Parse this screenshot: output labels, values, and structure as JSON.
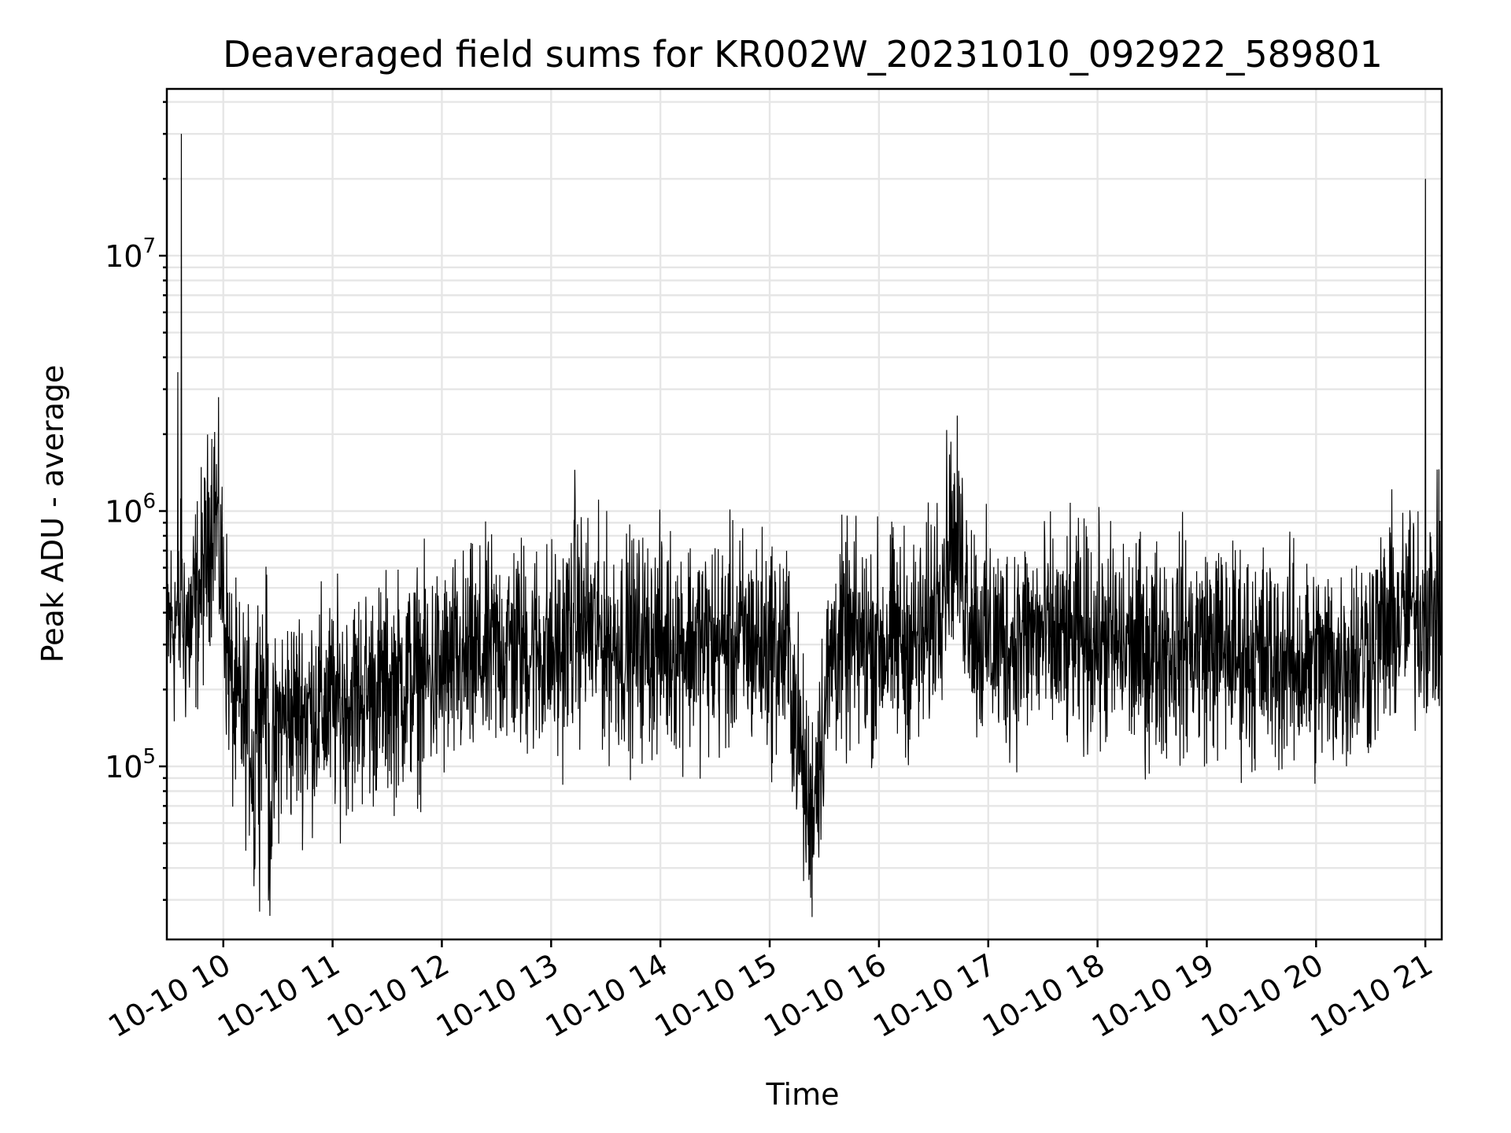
{
  "chart_data": {
    "type": "line",
    "title": "Deaveraged field sums for KR002W_20231010_092922_589801",
    "xlabel": "Time",
    "ylabel": "Peak ADU - average",
    "yscale": "log",
    "ylim": [
      21000,
      45000000
    ],
    "xlim": [
      "2023-10-10 09:29",
      "2023-10-10 21:09"
    ],
    "grid": "on (major and minor)",
    "x_tick_labels": [
      "10-10 10",
      "10-10 11",
      "10-10 12",
      "10-10 13",
      "10-10 14",
      "10-10 15",
      "10-10 16",
      "10-10 17",
      "10-10 18",
      "10-10 19",
      "10-10 20",
      "10-10 21"
    ],
    "x_tick_times": [
      "2023-10-10 10:00",
      "2023-10-10 11:00",
      "2023-10-10 12:00",
      "2023-10-10 13:00",
      "2023-10-10 14:00",
      "2023-10-10 15:00",
      "2023-10-10 16:00",
      "2023-10-10 17:00",
      "2023-10-10 18:00",
      "2023-10-10 19:00",
      "2023-10-10 20:00",
      "2023-10-10 21:00"
    ],
    "y_ticks": [
      {
        "value": 100000,
        "base": "10",
        "exp": "5"
      },
      {
        "value": 1000000,
        "base": "10",
        "exp": "6"
      },
      {
        "value": 10000000,
        "base": "10",
        "exp": "7"
      }
    ],
    "series": [
      {
        "color": "#000000",
        "x": [
          "2023-10-10 09:30",
          "2023-10-10 09:35",
          "2023-10-10 09:37",
          "2023-10-10 09:42",
          "2023-10-10 09:50",
          "2023-10-10 09:55",
          "2023-10-10 10:05",
          "2023-10-10 10:15",
          "2023-10-10 10:20",
          "2023-10-10 10:30",
          "2023-10-10 10:40",
          "2023-10-10 10:50",
          "2023-10-10 11:00",
          "2023-10-10 11:15",
          "2023-10-10 11:30",
          "2023-10-10 11:45",
          "2023-10-10 12:00",
          "2023-10-10 12:20",
          "2023-10-10 12:35",
          "2023-10-10 12:50",
          "2023-10-10 13:05",
          "2023-10-10 13:13",
          "2023-10-10 13:30",
          "2023-10-10 13:50",
          "2023-10-10 14:10",
          "2023-10-10 14:30",
          "2023-10-10 14:50",
          "2023-10-10 15:10",
          "2023-10-10 15:22",
          "2023-10-10 15:35",
          "2023-10-10 15:50",
          "2023-10-10 16:10",
          "2023-10-10 16:25",
          "2023-10-10 16:40",
          "2023-10-10 16:55",
          "2023-10-10 17:10",
          "2023-10-10 17:25",
          "2023-10-10 17:40",
          "2023-10-10 17:55",
          "2023-10-10 18:10",
          "2023-10-10 18:25",
          "2023-10-10 18:40",
          "2023-10-10 18:55",
          "2023-10-10 19:10",
          "2023-10-10 19:25",
          "2023-10-10 19:40",
          "2023-10-10 19:55",
          "2023-10-10 20:10",
          "2023-10-10 20:25",
          "2023-10-10 20:40",
          "2023-10-10 20:55",
          "2023-10-10 21:00",
          "2023-10-10 21:05",
          "2023-10-10 21:09"
        ],
        "values": [
          350000,
          3500000,
          30000000,
          350000,
          600000,
          1200000,
          180000,
          140000,
          27000,
          150000,
          160000,
          170000,
          170000,
          190000,
          200000,
          220000,
          230000,
          260000,
          300000,
          290000,
          270000,
          1450000,
          310000,
          300000,
          310000,
          300000,
          310000,
          280000,
          60000,
          300000,
          300000,
          310000,
          300000,
          840000,
          320000,
          300000,
          330000,
          300000,
          320000,
          300000,
          280000,
          300000,
          300000,
          290000,
          270000,
          260000,
          250000,
          250000,
          280000,
          350000,
          420000,
          20000000,
          420000,
          400000
        ]
      }
    ]
  }
}
